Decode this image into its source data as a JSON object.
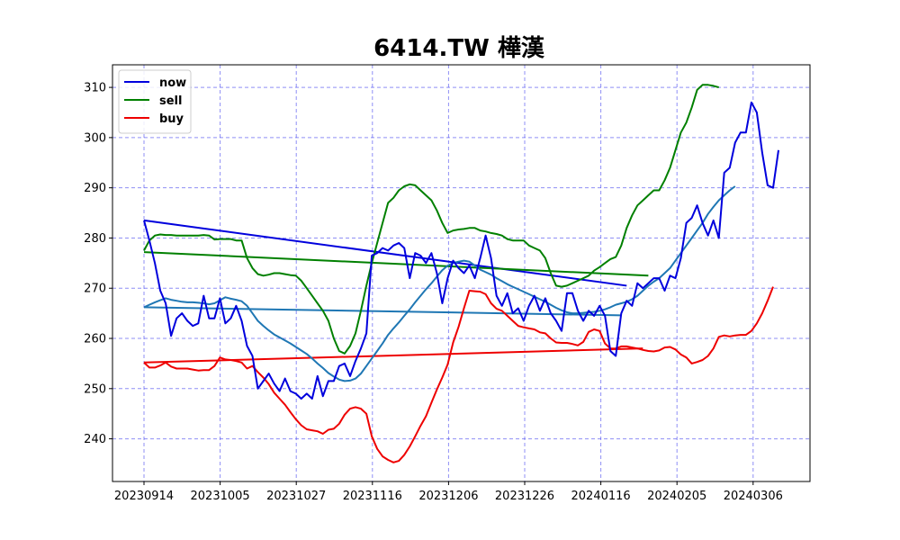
{
  "chart_data": {
    "type": "line",
    "title": "6414.TW 樺漢",
    "xlabel": "",
    "ylabel": "",
    "ylim": [
      231.5,
      314.5
    ],
    "yticks": [
      240,
      250,
      260,
      270,
      280,
      290,
      300,
      310
    ],
    "x_ticks": [
      "20230914",
      "20231005",
      "20231027",
      "20231116",
      "20231206",
      "20231226",
      "20240116",
      "20240205",
      "20240306"
    ],
    "grid": true,
    "legend_position": "upper-left",
    "colors": {
      "now": "#0000dd",
      "sell": "#008000",
      "buy": "#ee0000",
      "ma": "#1f77b4"
    },
    "series": [
      {
        "name": "now",
        "color": "#0000dd",
        "values": [
          283.5,
          279.5,
          275,
          269.5,
          267,
          260.5,
          264,
          265,
          263.5,
          262.5,
          263,
          268.5,
          264,
          264,
          268,
          263,
          264,
          266.5,
          263.5,
          258.5,
          256.5,
          250,
          251.5,
          253,
          251,
          249.5,
          252,
          249.5,
          249,
          248,
          249,
          248,
          252.5,
          248.5,
          251.5,
          251.5,
          254.5,
          255,
          252.5,
          255.5,
          258,
          261,
          276.5,
          277,
          278,
          277.5,
          278.5,
          279,
          278,
          272,
          277,
          276.5,
          275,
          277,
          273,
          267,
          272,
          275.5,
          274,
          273,
          274.5,
          272,
          276,
          280.5,
          276,
          268.5,
          266.5,
          269,
          265,
          266,
          263.5,
          266.5,
          268.5,
          265.5,
          268,
          265,
          263.5,
          261.5,
          269,
          269,
          265.5,
          263.5,
          265.5,
          264.5,
          266.5,
          264.5,
          257.5,
          256.5,
          265,
          267.5,
          266.5,
          271,
          270,
          271,
          272,
          272,
          269.5,
          272.5,
          272,
          276,
          283,
          284,
          286.5,
          283,
          280.5,
          283.5,
          280,
          293,
          294,
          299,
          301,
          301,
          307,
          305,
          297,
          290.5,
          290,
          297.5
        ]
      },
      {
        "name": "sell",
        "color": "#008000",
        "values": [
          277.5,
          279.5,
          280.5,
          280.7,
          280.6,
          280.6,
          280.5,
          280.5,
          280.5,
          280.5,
          280.5,
          280.6,
          280.5,
          279.7,
          279.8,
          279.8,
          279.8,
          279.5,
          279.5,
          276,
          274,
          272.8,
          272.5,
          272.7,
          273,
          273,
          272.8,
          272.6,
          272.5,
          271.5,
          270,
          268.5,
          267,
          265.5,
          263.5,
          260,
          257.5,
          257,
          258.5,
          261,
          265.5,
          270.5,
          275,
          279,
          283,
          287,
          288,
          289.5,
          290.3,
          290.7,
          290.5,
          289.5,
          288.5,
          287.5,
          285.5,
          283,
          281,
          281.5,
          281.7,
          281.8,
          282,
          282,
          281.5,
          281.3,
          281,
          280.8,
          280.5,
          279.8,
          279.5,
          279.5,
          279.5,
          278.5,
          278,
          277.5,
          276,
          273,
          270.5,
          270.3,
          270.5,
          271,
          271.5,
          272,
          272.5,
          273.5,
          274.2,
          275,
          275.8,
          276.2,
          278.5,
          282,
          284.5,
          286.5,
          287.5,
          288.5,
          289.5,
          289.5,
          291.5,
          294,
          297.5,
          301,
          303,
          306,
          309.5,
          310.5,
          310.5,
          310.3,
          310
        ]
      },
      {
        "name": "buy",
        "color": "#ee0000",
        "values": [
          255.2,
          254.2,
          254.2,
          254.6,
          255.2,
          254.4,
          254,
          254,
          254,
          253.8,
          253.6,
          253.7,
          253.7,
          254.5,
          256.2,
          255.8,
          255.7,
          255.5,
          255.2,
          254,
          254.5,
          253.3,
          252.2,
          250.9,
          249.2,
          248,
          246.8,
          245.3,
          243.9,
          242.7,
          241.9,
          241.7,
          241.5,
          241,
          241.8,
          242,
          243,
          244.8,
          246,
          246.3,
          246,
          245,
          240.5,
          238,
          236.5,
          235.8,
          235.3,
          235.6,
          236.8,
          238.5,
          240.5,
          242.6,
          244.5,
          247.2,
          249.8,
          252.2,
          254.8,
          259.2,
          262.3,
          266,
          269.5,
          269.4,
          269.3,
          268.8,
          267,
          265.9,
          265.5,
          264.5,
          263.5,
          262.5,
          262.2,
          262,
          261.8,
          261.2,
          261,
          260,
          259.2,
          259.1,
          259.1,
          258.9,
          258.6,
          259.3,
          261.3,
          261.8,
          261.5,
          259,
          258,
          258,
          258.4,
          258.4,
          258.2,
          258,
          257.7,
          257.5,
          257.4,
          257.6,
          258.2,
          258.3,
          257.8,
          256.8,
          256.2,
          255,
          255.3,
          255.7,
          256.5,
          258,
          260.3,
          260.6,
          260.4,
          260.6,
          260.7,
          260.7,
          261.5,
          263,
          265,
          267.5,
          270.3
        ]
      },
      {
        "name": "",
        "color": "#1f77b4",
        "values": [
          266.2,
          266.7,
          267.2,
          267.6,
          268,
          267.7,
          267.5,
          267.3,
          267.2,
          267.2,
          267.1,
          267,
          266.8,
          267,
          267.6,
          268.2,
          267.9,
          267.7,
          267.4,
          266.5,
          265,
          263.5,
          262.5,
          261.6,
          260.8,
          260.2,
          259.6,
          259,
          258.3,
          257.6,
          256.9,
          256,
          255,
          254.1,
          253.1,
          252.4,
          251.8,
          251.5,
          251.6,
          252,
          253,
          254.5,
          256,
          257.5,
          259,
          260.7,
          262,
          263.2,
          264.5,
          265.8,
          267.2,
          268.5,
          269.8,
          271,
          272.3,
          273.6,
          274.5,
          275,
          275.3,
          275.5,
          275.3,
          274.5,
          273.7,
          273.2,
          272.7,
          272,
          271.4,
          270.8,
          270.3,
          269.8,
          269.3,
          268.8,
          268.3,
          267.8,
          267.3,
          266.7,
          266.1,
          265.6,
          265.2,
          265,
          265,
          265.1,
          265.2,
          265.3,
          265.5,
          265.8,
          266.2,
          266.7,
          267,
          267.3,
          267.8,
          268.5,
          269.5,
          270.5,
          271.3,
          272,
          273,
          274,
          275.5,
          277,
          278.5,
          280,
          281.5,
          283,
          284.8,
          286.2,
          287.5,
          288.5,
          289.5,
          290.3
        ]
      }
    ],
    "trend_lines": [
      {
        "series": "now",
        "values": [
          283.5,
          270.5
        ]
      },
      {
        "series": "sell",
        "values": [
          277.2,
          272.5
        ]
      },
      {
        "series": "buy",
        "values": [
          255.2,
          258.0
        ]
      },
      {
        "series": "ma",
        "values": [
          266.2,
          264.6
        ]
      }
    ]
  }
}
